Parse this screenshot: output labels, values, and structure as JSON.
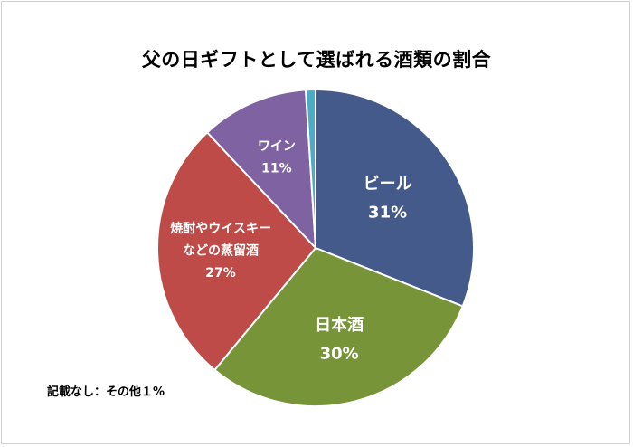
{
  "chart_data": {
    "type": "pie",
    "title": "父の日ギフトとして選ばれる酒類の割合",
    "slices": [
      {
        "label": "ビール",
        "value": 31,
        "value_label": "31%",
        "color": "#445a8a"
      },
      {
        "label": "日本酒",
        "value": 30,
        "value_label": "30%",
        "color": "#779438"
      },
      {
        "label_lines": [
          "焼酎やウイスキー",
          "などの蒸留酒"
        ],
        "value": 27,
        "value_label": "27%",
        "color": "#be4b48"
      },
      {
        "label": "ワイン",
        "value": 11,
        "value_label": "11%",
        "color": "#7e62a1"
      },
      {
        "value": 1,
        "color": "#4aacc6"
      }
    ],
    "note": "記載なし：その他１%"
  }
}
